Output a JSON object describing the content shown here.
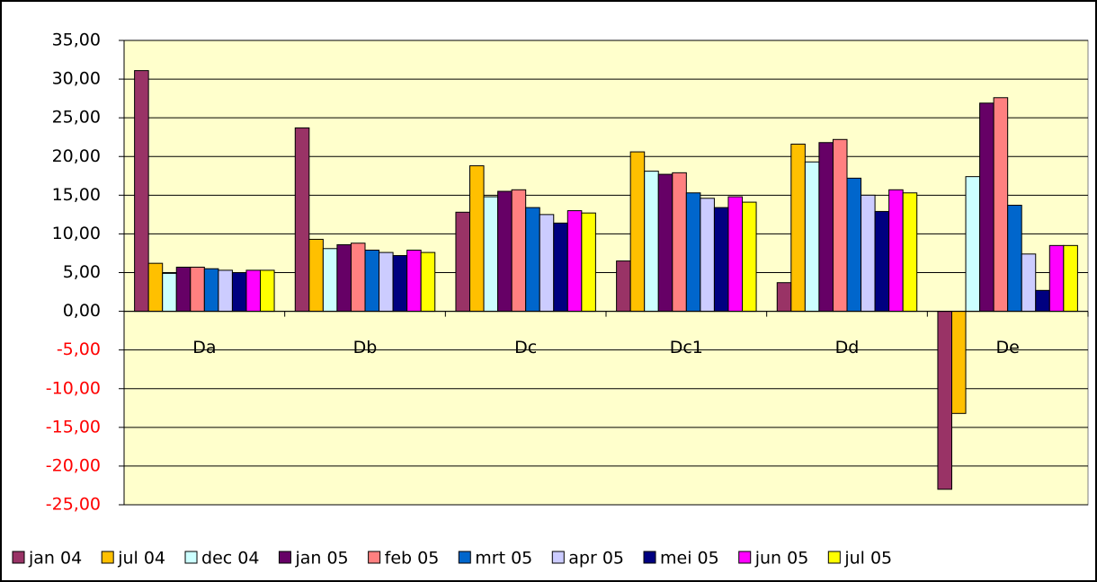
{
  "chart_data": {
    "type": "bar",
    "categories": [
      "Da",
      "Db",
      "Dc",
      "Dc1",
      "Dd",
      "De"
    ],
    "series": [
      {
        "name": "jan 04",
        "color": "#993366",
        "values": [
          31.1,
          23.7,
          12.8,
          6.5,
          3.7,
          -23.0
        ]
      },
      {
        "name": "jul 04",
        "color": "#ffc000",
        "values": [
          6.2,
          9.3,
          18.8,
          20.6,
          21.6,
          -13.2
        ]
      },
      {
        "name": "dec 04",
        "color": "#ccffff",
        "values": [
          4.9,
          8.1,
          14.8,
          18.1,
          19.3,
          17.4
        ]
      },
      {
        "name": "jan 05",
        "color": "#660066",
        "values": [
          5.7,
          8.6,
          15.5,
          17.7,
          21.8,
          26.9
        ]
      },
      {
        "name": "feb 05",
        "color": "#ff8080",
        "values": [
          5.7,
          8.8,
          15.7,
          17.9,
          22.2,
          27.6
        ]
      },
      {
        "name": "mrt 05",
        "color": "#0066cc",
        "values": [
          5.5,
          7.9,
          13.4,
          15.3,
          17.2,
          13.7
        ]
      },
      {
        "name": "apr 05",
        "color": "#ccccff",
        "values": [
          5.3,
          7.6,
          12.5,
          14.6,
          15.0,
          7.4
        ]
      },
      {
        "name": "mei 05",
        "color": "#000080",
        "values": [
          5.0,
          7.2,
          11.4,
          13.4,
          12.9,
          2.7
        ]
      },
      {
        "name": "jun 05",
        "color": "#ff00ff",
        "values": [
          5.3,
          7.9,
          13.0,
          14.8,
          15.7,
          8.5
        ]
      },
      {
        "name": "jul 05",
        "color": "#ffff00",
        "values": [
          5.3,
          7.6,
          12.7,
          14.1,
          15.3,
          8.5
        ]
      }
    ],
    "ylim": [
      -25,
      35
    ],
    "yticks": [
      {
        "value": -25,
        "label": "-25,00"
      },
      {
        "value": -20,
        "label": "-20,00"
      },
      {
        "value": -15,
        "label": "-15,00"
      },
      {
        "value": -10,
        "label": "-10,00"
      },
      {
        "value": -5,
        "label": "-5,00"
      },
      {
        "value": 0,
        "label": "0,00"
      },
      {
        "value": 5,
        "label": "5,00"
      },
      {
        "value": 10,
        "label": "10,00"
      },
      {
        "value": 15,
        "label": "15,00"
      },
      {
        "value": 20,
        "label": "20,00"
      },
      {
        "value": 25,
        "label": "25,00"
      },
      {
        "value": 30,
        "label": "30,00"
      },
      {
        "value": 35,
        "label": "35,00"
      }
    ],
    "grid": true,
    "plot_background": "#ffffcc",
    "negative_tick_color": "#ff0000",
    "legend": "bottom"
  }
}
